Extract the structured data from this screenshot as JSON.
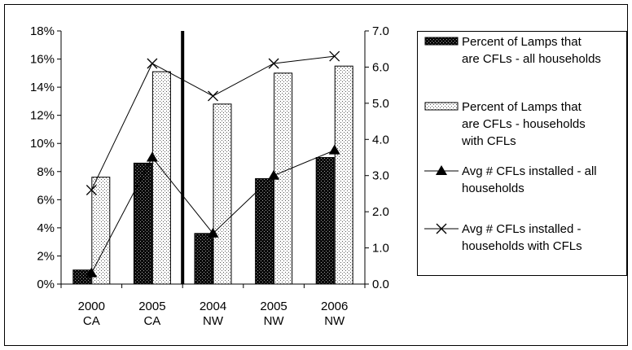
{
  "chart_data": {
    "type": "bar",
    "categories": [
      {
        "line1": "2000",
        "line2": "CA"
      },
      {
        "line1": "2005",
        "line2": "CA"
      },
      {
        "line1": "2004",
        "line2": "NW"
      },
      {
        "line1": "2005",
        "line2": "NW"
      },
      {
        "line1": "2006",
        "line2": "NW"
      }
    ],
    "bar_series": [
      {
        "name": "Percent of Lamps that are CFLs - all households",
        "legend_lines": [
          "Percent of Lamps that",
          "are CFLs - all households"
        ],
        "values": [
          1.0,
          8.6,
          3.6,
          7.5,
          9.0
        ],
        "fill": "#1a1a1a",
        "axis": "left"
      },
      {
        "name": "Percent of Lamps that are CFLs - households with CFLs",
        "legend_lines": [
          "Percent of Lamps that",
          "are CFLs - households",
          "with CFLs"
        ],
        "values": [
          7.6,
          15.1,
          12.8,
          15.0,
          15.5
        ],
        "fill": "#e6e6e6",
        "axis": "left"
      }
    ],
    "line_series": [
      {
        "name": "Avg # CFLs installed - all households",
        "legend_lines": [
          "Avg # CFLs installed - all",
          "households"
        ],
        "values": [
          0.3,
          3.5,
          1.4,
          3.0,
          3.7
        ],
        "marker": "triangle",
        "axis": "right"
      },
      {
        "name": "Avg # CFLs installed - households with CFLs",
        "legend_lines": [
          "Avg # CFLs installed -",
          "households with CFLs"
        ],
        "values": [
          2.6,
          6.1,
          5.2,
          6.1,
          6.3
        ],
        "marker": "x",
        "axis": "right"
      }
    ],
    "y_left": {
      "min": 0,
      "max": 18,
      "step": 2,
      "format": "percent"
    },
    "y_right": {
      "min": 0,
      "max": 7,
      "step": 1,
      "format": "decimal1"
    },
    "divider_after_category": 1,
    "legend_position": "right",
    "grid": false,
    "title": "",
    "xlabel": "",
    "ylabel": ""
  }
}
